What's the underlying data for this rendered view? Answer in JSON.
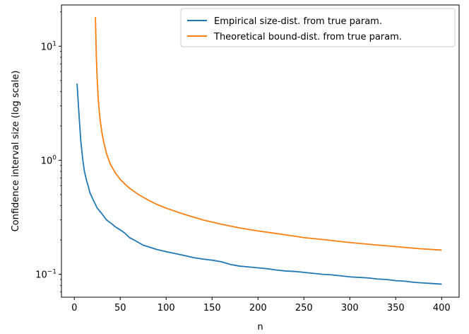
{
  "chart_data": {
    "type": "line",
    "xlabel": "n",
    "ylabel": "Confidence interval size (log scale)",
    "yscale": "log",
    "xlim": [
      -14,
      419
    ],
    "ylim": [
      0.063,
      23.0
    ],
    "x_ticks": [
      0,
      50,
      100,
      150,
      200,
      250,
      300,
      350,
      400
    ],
    "y_ticks": [
      {
        "value": 0.1,
        "base": "10",
        "exp": "−1"
      },
      {
        "value": 1,
        "base": "10",
        "exp": "0"
      },
      {
        "value": 10,
        "base": "10",
        "exp": "1"
      }
    ],
    "grid": false,
    "legend_position": "upper right",
    "series": [
      {
        "name": "Empirical size-dist. from true param.",
        "color": "#1f77b4",
        "x": [
          3,
          5,
          7,
          9,
          11,
          13,
          15,
          17,
          20,
          25,
          30,
          35,
          40,
          45,
          50,
          55,
          60,
          65,
          70,
          75,
          80,
          90,
          100,
          110,
          120,
          130,
          140,
          150,
          160,
          170,
          180,
          190,
          200,
          210,
          220,
          230,
          240,
          250,
          260,
          270,
          280,
          290,
          300,
          310,
          320,
          330,
          340,
          350,
          360,
          370,
          380,
          390,
          400
        ],
        "values": [
          4.7,
          2.6,
          1.5,
          1.05,
          0.8,
          0.68,
          0.6,
          0.52,
          0.46,
          0.38,
          0.34,
          0.3,
          0.28,
          0.26,
          0.245,
          0.23,
          0.21,
          0.2,
          0.19,
          0.18,
          0.175,
          0.165,
          0.158,
          0.152,
          0.146,
          0.14,
          0.136,
          0.133,
          0.129,
          0.122,
          0.118,
          0.116,
          0.114,
          0.112,
          0.109,
          0.107,
          0.106,
          0.104,
          0.102,
          0.1,
          0.099,
          0.097,
          0.095,
          0.094,
          0.093,
          0.091,
          0.09,
          0.088,
          0.087,
          0.085,
          0.084,
          0.083,
          0.082
        ]
      },
      {
        "name": "Theoretical bound-dist. from true param.",
        "color": "#ff7f0e",
        "x": [
          23,
          24,
          25,
          26,
          27,
          28,
          30,
          32,
          35,
          38,
          40,
          45,
          50,
          55,
          60,
          70,
          80,
          90,
          100,
          120,
          140,
          160,
          180,
          200,
          225,
          250,
          275,
          300,
          325,
          350,
          375,
          400
        ],
        "values": [
          18.0,
          8.0,
          5.0,
          3.5,
          2.8,
          2.3,
          1.75,
          1.45,
          1.15,
          0.98,
          0.9,
          0.77,
          0.68,
          0.62,
          0.57,
          0.5,
          0.45,
          0.41,
          0.38,
          0.335,
          0.3,
          0.275,
          0.255,
          0.24,
          0.225,
          0.21,
          0.2,
          0.19,
          0.182,
          0.175,
          0.168,
          0.163
        ]
      }
    ]
  }
}
